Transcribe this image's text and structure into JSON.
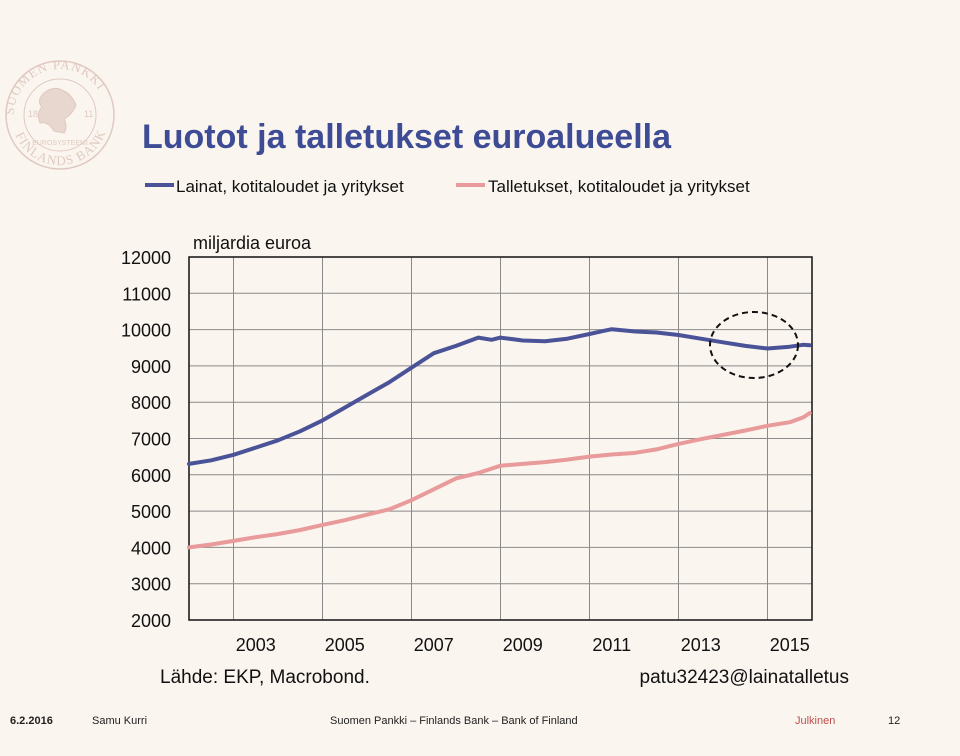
{
  "slide": {
    "title": "Luotot ja talletukset euroalueella",
    "source": "Lähde: EKP, Macrobond.",
    "code": "patu32423@lainatalletus"
  },
  "logo": {
    "text_top": "SUOMEN PANKKI",
    "text_bottom": "FINLANDS BANK",
    "text_center": "EUROSYSTEEMI",
    "year_left": "18",
    "year_right": "11"
  },
  "footer": {
    "date": "6.2.2016",
    "author": "Samu Kurri",
    "org": "Suomen Pankki – Finlands Bank – Bank of Finland",
    "class": "Julkinen",
    "page": "12"
  },
  "colors": {
    "title": "#3d4c95",
    "loans": "#4a5398",
    "deposits": "#e99a9a",
    "classification": "#c0504d"
  },
  "chart_data": {
    "type": "line",
    "title": "Luotot ja talletukset euroalueella",
    "ylabel": "miljardia euroa",
    "ylim": [
      2000,
      12000
    ],
    "yticks": [
      "2000",
      "3000",
      "4000",
      "5000",
      "6000",
      "7000",
      "8000",
      "9000",
      "10000",
      "11000",
      "12000"
    ],
    "xlim": [
      2002.0,
      2016.0
    ],
    "xticks": [
      "2003",
      "2005",
      "2007",
      "2009",
      "2011",
      "2013",
      "2015"
    ],
    "grid": true,
    "legend": "top",
    "annotation": "dashed circle around 2015 loans",
    "series": [
      {
        "name": "Lainat, kotitaloudet ja yritykset",
        "color": "#4a5398",
        "x": [
          2002.0,
          2002.5,
          2003.0,
          2003.5,
          2004.0,
          2004.5,
          2005.0,
          2005.5,
          2006.0,
          2006.5,
          2007.0,
          2007.5,
          2008.0,
          2008.5,
          2008.8,
          2009.0,
          2009.5,
          2010.0,
          2010.5,
          2011.0,
          2011.3,
          2011.5,
          2012.0,
          2012.5,
          2013.0,
          2013.5,
          2014.0,
          2014.5,
          2015.0,
          2015.5,
          2015.8,
          2015.95
        ],
        "values": [
          6300,
          6400,
          6550,
          6750,
          6950,
          7200,
          7500,
          7850,
          8200,
          8550,
          8950,
          9350,
          9550,
          9780,
          9720,
          9780,
          9700,
          9680,
          9750,
          9880,
          9960,
          10010,
          9950,
          9920,
          9850,
          9750,
          9650,
          9550,
          9480,
          9530,
          9580,
          9570
        ]
      },
      {
        "name": "Talletukset, kotitaloudet ja yritykset",
        "color": "#e99a9a",
        "x": [
          2002.0,
          2002.5,
          2003.0,
          2003.5,
          2004.0,
          2004.5,
          2005.0,
          2005.5,
          2006.0,
          2006.5,
          2007.0,
          2007.5,
          2008.0,
          2008.5,
          2009.0,
          2009.5,
          2010.0,
          2010.5,
          2011.0,
          2011.5,
          2012.0,
          2012.5,
          2013.0,
          2013.5,
          2014.0,
          2014.5,
          2015.0,
          2015.5,
          2015.8,
          2015.95
        ],
        "values": [
          4000,
          4080,
          4180,
          4280,
          4370,
          4480,
          4620,
          4750,
          4900,
          5050,
          5300,
          5600,
          5900,
          6050,
          6250,
          6300,
          6350,
          6420,
          6500,
          6560,
          6600,
          6700,
          6850,
          6980,
          7100,
          7220,
          7350,
          7450,
          7580,
          7700
        ]
      }
    ]
  }
}
